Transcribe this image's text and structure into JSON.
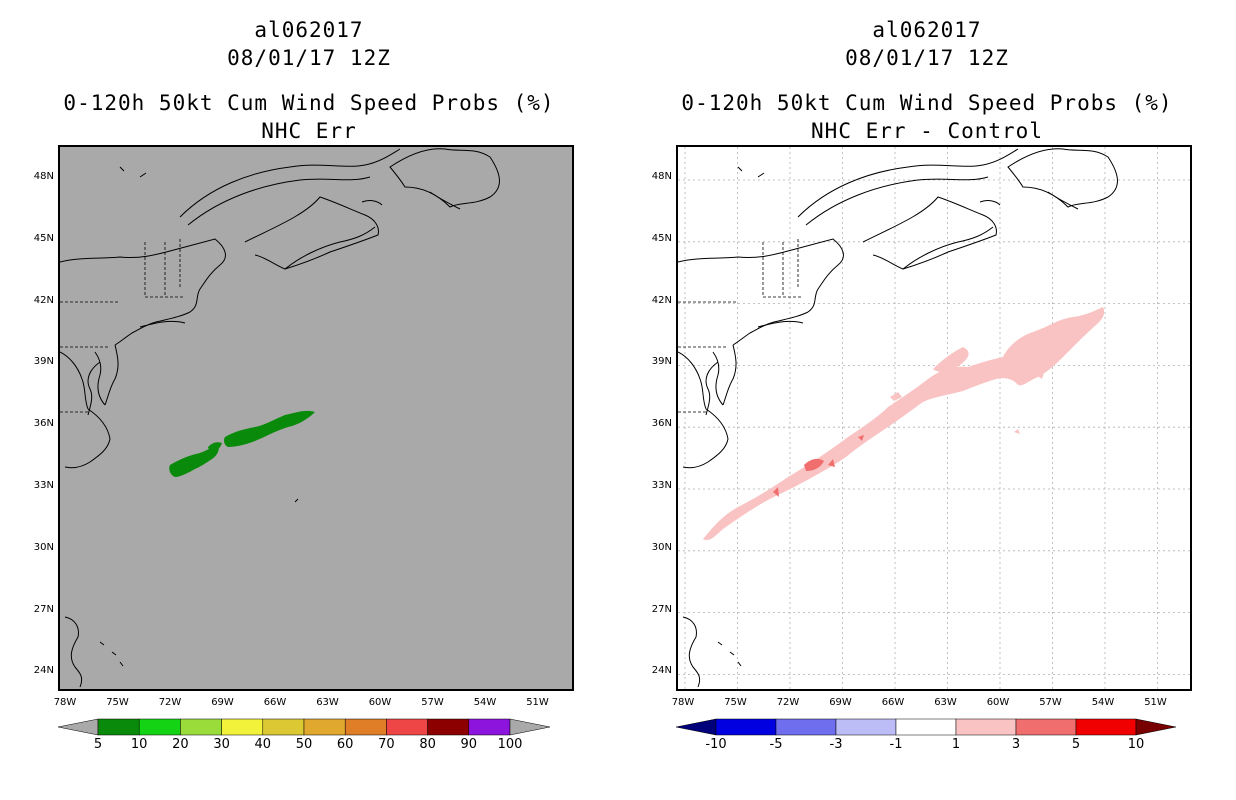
{
  "left_panel": {
    "storm_id": "al062017",
    "date": "08/01/17 12Z",
    "product": "0-120h 50kt Cum Wind Speed Probs (%)",
    "subtitle": "NHC Err",
    "background_color": "#a9a9a9",
    "colorbar": {
      "labels": [
        "5",
        "10",
        "20",
        "30",
        "40",
        "50",
        "60",
        "70",
        "80",
        "90",
        "100"
      ],
      "colors": [
        "#0a8a0a",
        "#14d214",
        "#9adc3a",
        "#f2f23a",
        "#dcc832",
        "#e0a82e",
        "#e07e28",
        "#ee4646",
        "#8c0000",
        "#8c14dc"
      ],
      "end_color": "#a9a9a9"
    }
  },
  "right_panel": {
    "storm_id": "al062017",
    "date": "08/01/17 12Z",
    "product": "0-120h 50kt Cum Wind Speed Probs (%)",
    "subtitle": "NHC Err - Control",
    "background_color": "#ffffff",
    "colorbar": {
      "labels": [
        "-10",
        "-5",
        "-3",
        "-1",
        "1",
        "3",
        "5",
        "10"
      ],
      "colors": [
        "#0000e0",
        "#6e6eee",
        "#bcbcf6",
        "#ffffff",
        "#fac3c3",
        "#f06e6e",
        "#f00000"
      ],
      "low_end_color": "#00007a",
      "high_end_color": "#780000"
    }
  },
  "map": {
    "lat_labels": [
      "48N",
      "45N",
      "42N",
      "39N",
      "36N",
      "33N",
      "30N",
      "27N",
      "24N"
    ],
    "lon_labels": [
      "78W",
      "75W",
      "72W",
      "69W",
      "66W",
      "63W",
      "60W",
      "57W",
      "54W",
      "51W"
    ]
  }
}
